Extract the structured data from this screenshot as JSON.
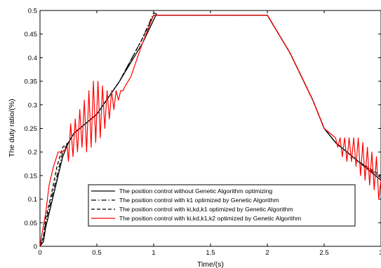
{
  "chart_data": {
    "type": "line",
    "title": "",
    "xlabel": "Time/(s)",
    "ylabel": "The duty ratio/(%)",
    "xlim": [
      0,
      3
    ],
    "ylim": [
      0,
      0.5
    ],
    "xticks": [
      0,
      0.5,
      1,
      1.5,
      2,
      2.5,
      3
    ],
    "xtick_labels": [
      "0",
      "0.5",
      "1",
      "1.5",
      "2",
      "2.5",
      "3"
    ],
    "yticks": [
      0,
      0.05,
      0.1,
      0.15,
      0.2,
      0.25,
      0.3,
      0.35,
      0.4,
      0.45,
      0.5
    ],
    "ytick_labels": [
      "0",
      "0.05",
      "0.1",
      "0.15",
      "0.2",
      "0.25",
      "0.3",
      "0.35",
      "0.4",
      "0.45",
      "0.5"
    ],
    "grid": false,
    "legend_position": "bottom-right",
    "series": [
      {
        "name": "The position control without Genetic Algorithm optimizing",
        "color": "#000000",
        "style": "solid",
        "x": [
          0,
          0.03,
          0.05,
          0.1,
          0.15,
          0.2,
          0.25,
          0.3,
          0.5,
          0.7,
          0.9,
          1.02,
          1.1,
          2.0,
          2.2,
          2.4,
          2.5,
          2.6,
          2.8,
          3.0
        ],
        "y": [
          0,
          0.01,
          0.04,
          0.09,
          0.14,
          0.19,
          0.22,
          0.24,
          0.28,
          0.35,
          0.43,
          0.49,
          0.49,
          0.49,
          0.41,
          0.31,
          0.25,
          0.22,
          0.18,
          0.14
        ]
      },
      {
        "name": "The position control with k1 optimized by Genetic Algorithm",
        "color": "#000000",
        "style": "dashdot",
        "x": [
          0,
          0.03,
          0.05,
          0.1,
          0.15,
          0.2,
          0.25,
          0.3,
          0.5,
          0.7,
          0.9,
          1.0,
          1.05,
          2.0,
          2.2,
          2.4,
          2.5,
          2.6,
          2.8,
          3.0
        ],
        "y": [
          0,
          0.02,
          0.05,
          0.1,
          0.15,
          0.2,
          0.22,
          0.24,
          0.28,
          0.35,
          0.44,
          0.495,
          0.49,
          0.49,
          0.41,
          0.31,
          0.25,
          0.22,
          0.18,
          0.145
        ]
      },
      {
        "name": "The position control with ki,kd,k1 optimized by Genetic Algorithm",
        "color": "#000000",
        "style": "dashed",
        "x": [
          0,
          0.03,
          0.05,
          0.1,
          0.15,
          0.2,
          0.25,
          0.3,
          0.5,
          0.7,
          0.9,
          1.0,
          1.05,
          2.0,
          2.2,
          2.4,
          2.5,
          2.6,
          2.8,
          3.0
        ],
        "y": [
          0,
          0.02,
          0.06,
          0.11,
          0.17,
          0.21,
          0.22,
          0.24,
          0.28,
          0.35,
          0.44,
          0.49,
          0.49,
          0.49,
          0.41,
          0.31,
          0.25,
          0.22,
          0.18,
          0.15
        ]
      },
      {
        "name": "The position control with ki,kd,k1,k2 optimized by Genetic Algorithm",
        "color": "#ff0000",
        "style": "solid",
        "x": [
          0,
          0.02,
          0.05,
          0.08,
          0.12,
          0.16,
          0.2,
          0.24,
          0.25,
          0.27,
          0.29,
          0.31,
          0.33,
          0.35,
          0.37,
          0.39,
          0.41,
          0.43,
          0.45,
          0.47,
          0.49,
          0.51,
          0.53,
          0.55,
          0.57,
          0.59,
          0.61,
          0.63,
          0.65,
          0.67,
          0.69,
          0.71,
          0.73,
          0.75,
          0.8,
          0.9,
          1.0,
          1.05,
          1.5,
          2.0,
          2.2,
          2.4,
          2.5,
          2.6,
          2.62,
          2.64,
          2.66,
          2.68,
          2.7,
          2.72,
          2.74,
          2.76,
          2.78,
          2.8,
          2.82,
          2.84,
          2.86,
          2.88,
          2.9,
          2.92,
          2.94,
          2.96,
          2.98,
          3.0
        ],
        "y": [
          0,
          0.03,
          0.07,
          0.13,
          0.17,
          0.2,
          0.2,
          0.21,
          0.18,
          0.26,
          0.19,
          0.27,
          0.2,
          0.29,
          0.21,
          0.31,
          0.2,
          0.33,
          0.21,
          0.35,
          0.22,
          0.35,
          0.23,
          0.34,
          0.25,
          0.33,
          0.27,
          0.33,
          0.29,
          0.33,
          0.31,
          0.33,
          0.33,
          0.34,
          0.36,
          0.43,
          0.49,
          0.49,
          0.49,
          0.49,
          0.41,
          0.31,
          0.25,
          0.23,
          0.21,
          0.23,
          0.19,
          0.23,
          0.18,
          0.23,
          0.18,
          0.23,
          0.17,
          0.23,
          0.15,
          0.22,
          0.14,
          0.21,
          0.13,
          0.2,
          0.12,
          0.19,
          0.1,
          0.14
        ]
      }
    ]
  }
}
